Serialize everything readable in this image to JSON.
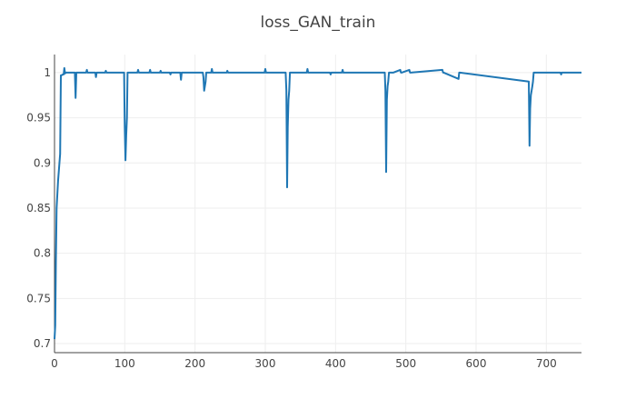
{
  "chart_data": {
    "type": "line",
    "title": "loss_GAN_train",
    "xlabel": "",
    "ylabel": "",
    "xlim": [
      0,
      750
    ],
    "ylim": [
      0.69,
      1.02
    ],
    "grid": true,
    "x_ticks": [
      0,
      100,
      200,
      300,
      400,
      500,
      600,
      700
    ],
    "x_tick_labels": [
      "0",
      "100",
      "200",
      "300",
      "400",
      "500",
      "600",
      "700"
    ],
    "y_ticks": [
      0.7,
      0.75,
      0.8,
      0.85,
      0.9,
      0.95,
      1.0
    ],
    "y_tick_labels": [
      "0.7",
      "0.75",
      "0.8",
      "0.85",
      "0.9",
      "0.95",
      "1"
    ],
    "colors": {
      "series": "#1f77b4"
    },
    "series": [
      {
        "x": [
          0,
          1,
          2,
          3,
          5,
          8,
          9,
          10,
          12,
          13,
          14,
          15,
          16,
          20,
          25,
          29,
          30,
          31,
          35,
          45,
          46,
          47,
          58,
          59,
          60,
          72,
          73,
          74,
          98,
          99,
          100,
          101,
          102,
          103,
          104,
          105,
          106,
          118,
          119,
          120,
          135,
          136,
          137,
          150,
          151,
          152,
          164,
          165,
          166,
          179,
          180,
          181,
          210,
          211,
          212,
          213,
          214,
          215,
          216,
          217,
          218,
          219,
          220,
          221,
          222,
          223,
          224,
          225,
          226,
          245,
          246,
          247,
          299,
          300,
          301,
          302,
          327,
          328,
          329,
          330,
          331,
          332,
          333,
          334,
          335,
          336,
          337,
          338,
          339,
          340,
          358,
          359,
          360,
          361,
          392,
          393,
          394,
          409,
          410,
          411,
          412,
          469,
          470,
          471,
          472,
          473,
          474,
          475,
          476,
          477,
          478,
          479,
          480,
          481,
          482,
          492,
          493,
          494,
          505,
          506,
          507,
          552,
          553,
          554,
          575,
          576,
          577,
          675,
          676,
          677,
          678,
          679,
          680,
          681,
          682,
          683,
          684,
          685,
          686,
          687,
          688,
          689,
          690,
          720,
          721,
          722,
          750
        ],
        "y": [
          0.705,
          0.72,
          0.79,
          0.85,
          0.88,
          0.91,
          0.997,
          0.997,
          0.998,
          0.998,
          1.005,
          0.999,
          1.0,
          1.0,
          1.0,
          1.0,
          0.972,
          1.0,
          1.0,
          1.0,
          1.003,
          1.0,
          1.0,
          0.995,
          1.0,
          1.0,
          1.002,
          1.0,
          1.0,
          1.0,
          0.94,
          0.903,
          0.93,
          0.95,
          1.0,
          1.0,
          1.0,
          1.0,
          1.003,
          1.0,
          1.0,
          1.003,
          1.0,
          1.0,
          1.002,
          1.0,
          1.0,
          0.998,
          1.0,
          1.0,
          0.992,
          1.0,
          1.0,
          1.0,
          0.995,
          0.98,
          0.985,
          0.99,
          1.0,
          1.0,
          1.0,
          1.0,
          1.0,
          1.0,
          1.0,
          1.0,
          1.004,
          1.0,
          1.0,
          1.0,
          1.002,
          1.0,
          1.0,
          1.004,
          1.0,
          1.0,
          1.0,
          1.0,
          1.0,
          0.98,
          0.873,
          0.94,
          0.97,
          0.98,
          1.0,
          1.0,
          1.0,
          1.0,
          1.0,
          1.0,
          1.0,
          1.0,
          1.004,
          1.0,
          1.0,
          0.998,
          1.0,
          1.0,
          1.003,
          1.0,
          1.0,
          1.0,
          1.0,
          0.98,
          0.89,
          0.97,
          0.985,
          0.99,
          1.0,
          1.0,
          1.0,
          1.0,
          1.0,
          1.0,
          1.0,
          1.003,
          1.0,
          1.0,
          1.003,
          1.0,
          1.0,
          1.003,
          1.0,
          1.0,
          0.993,
          1.0,
          1.0,
          0.99,
          0.919,
          0.96,
          0.975,
          0.98,
          0.985,
          0.99,
          1.0,
          1.0,
          1.0,
          1.0,
          1.0,
          1.0,
          1.0,
          1.0,
          1.0,
          1.0,
          0.998,
          1.0,
          1.0
        ]
      }
    ]
  }
}
